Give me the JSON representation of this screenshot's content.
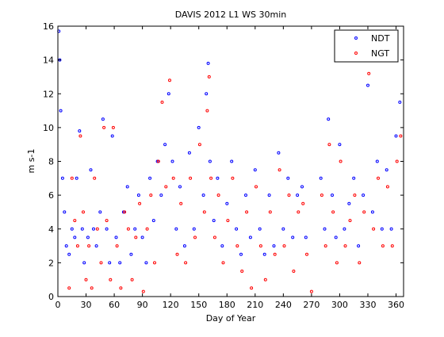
{
  "chart_data": {
    "type": "scatter",
    "title": "DAVIS 2012 L1 WS 30min",
    "xlabel": "Day of Year",
    "ylabel": "m s-1",
    "xlim": [
      0,
      368
    ],
    "ylim": [
      0,
      16
    ],
    "xticks": [
      0,
      30,
      60,
      90,
      120,
      150,
      180,
      210,
      240,
      270,
      300,
      330,
      360
    ],
    "yticks": [
      0,
      2,
      4,
      6,
      8,
      10,
      12,
      14,
      16
    ],
    "grid": false,
    "legend_position": "top-right",
    "series": [
      {
        "name": "NDT",
        "color": "#0000ff",
        "marker": "dot",
        "x": [
          1,
          2,
          3,
          5,
          7,
          9,
          12,
          15,
          18,
          20,
          23,
          26,
          28,
          32,
          35,
          38,
          41,
          45,
          48,
          52,
          55,
          58,
          62,
          66,
          70,
          74,
          78,
          82,
          86,
          90,
          94,
          98,
          102,
          106,
          110,
          114,
          118,
          122,
          126,
          130,
          135,
          140,
          145,
          150,
          155,
          158,
          160,
          162,
          166,
          170,
          175,
          180,
          185,
          190,
          195,
          200,
          205,
          210,
          215,
          220,
          225,
          230,
          235,
          240,
          245,
          250,
          255,
          260,
          264,
          280,
          284,
          288,
          292,
          296,
          300,
          305,
          310,
          315,
          320,
          325,
          330,
          335,
          340,
          345,
          350,
          355,
          360,
          364
        ],
        "y": [
          15.7,
          14.0,
          11.0,
          7.0,
          5.0,
          3.0,
          2.5,
          4.0,
          3.5,
          7.0,
          9.8,
          4.0,
          2.0,
          3.5,
          7.5,
          4.0,
          3.0,
          5.0,
          10.5,
          4.0,
          2.0,
          9.5,
          3.5,
          2.0,
          5.0,
          6.5,
          2.5,
          4.0,
          6.0,
          3.5,
          2.0,
          7.0,
          4.5,
          8.0,
          6.0,
          9.0,
          12.0,
          8.0,
          4.0,
          6.5,
          3.0,
          8.5,
          4.0,
          10.0,
          6.0,
          12.0,
          13.8,
          8.0,
          4.5,
          7.0,
          3.0,
          5.5,
          8.0,
          4.0,
          2.5,
          6.0,
          3.5,
          7.5,
          4.0,
          2.5,
          6.0,
          3.0,
          8.5,
          4.0,
          7.0,
          3.5,
          6.0,
          6.5,
          3.5,
          7.0,
          4.0,
          10.5,
          6.0,
          3.5,
          9.0,
          4.0,
          5.5,
          7.0,
          3.0,
          6.0,
          12.5,
          5.0,
          8.0,
          4.0,
          7.5,
          4.0,
          9.5,
          11.5
        ]
      },
      {
        "name": "NGT",
        "color": "#ff0000",
        "marker": "dot",
        "x": [
          12,
          15,
          18,
          21,
          24,
          27,
          30,
          33,
          36,
          39,
          42,
          46,
          49,
          52,
          56,
          59,
          63,
          67,
          71,
          75,
          79,
          83,
          87,
          91,
          95,
          99,
          103,
          107,
          111,
          115,
          119,
          123,
          127,
          131,
          136,
          141,
          146,
          151,
          156,
          159,
          161,
          163,
          167,
          171,
          176,
          181,
          186,
          191,
          196,
          201,
          206,
          211,
          216,
          221,
          226,
          231,
          236,
          241,
          246,
          251,
          256,
          261,
          265,
          270,
          281,
          285,
          289,
          293,
          297,
          301,
          306,
          311,
          316,
          321,
          326,
          331,
          336,
          341,
          346,
          351,
          356,
          361,
          365
        ],
        "y": [
          0.5,
          7.0,
          4.5,
          3.0,
          9.5,
          5.0,
          1.0,
          3.0,
          0.5,
          7.0,
          4.0,
          2.0,
          10.0,
          4.5,
          1.0,
          10.0,
          3.0,
          0.5,
          5.0,
          4.0,
          1.0,
          3.5,
          5.5,
          0.3,
          4.0,
          6.0,
          2.0,
          8.0,
          11.5,
          6.5,
          12.8,
          7.0,
          2.5,
          5.5,
          2.0,
          7.0,
          3.5,
          9.0,
          5.0,
          11.0,
          13.0,
          7.0,
          3.5,
          6.0,
          2.0,
          4.5,
          7.0,
          3.0,
          1.5,
          5.0,
          0.5,
          6.5,
          3.0,
          1.0,
          5.0,
          2.5,
          7.5,
          3.0,
          6.0,
          1.5,
          5.0,
          5.5,
          2.5,
          0.3,
          6.0,
          3.0,
          9.0,
          5.0,
          2.0,
          8.0,
          3.0,
          4.5,
          6.0,
          2.0,
          5.0,
          13.2,
          4.0,
          7.0,
          3.0,
          6.5,
          3.0,
          8.0,
          9.5
        ]
      }
    ]
  }
}
